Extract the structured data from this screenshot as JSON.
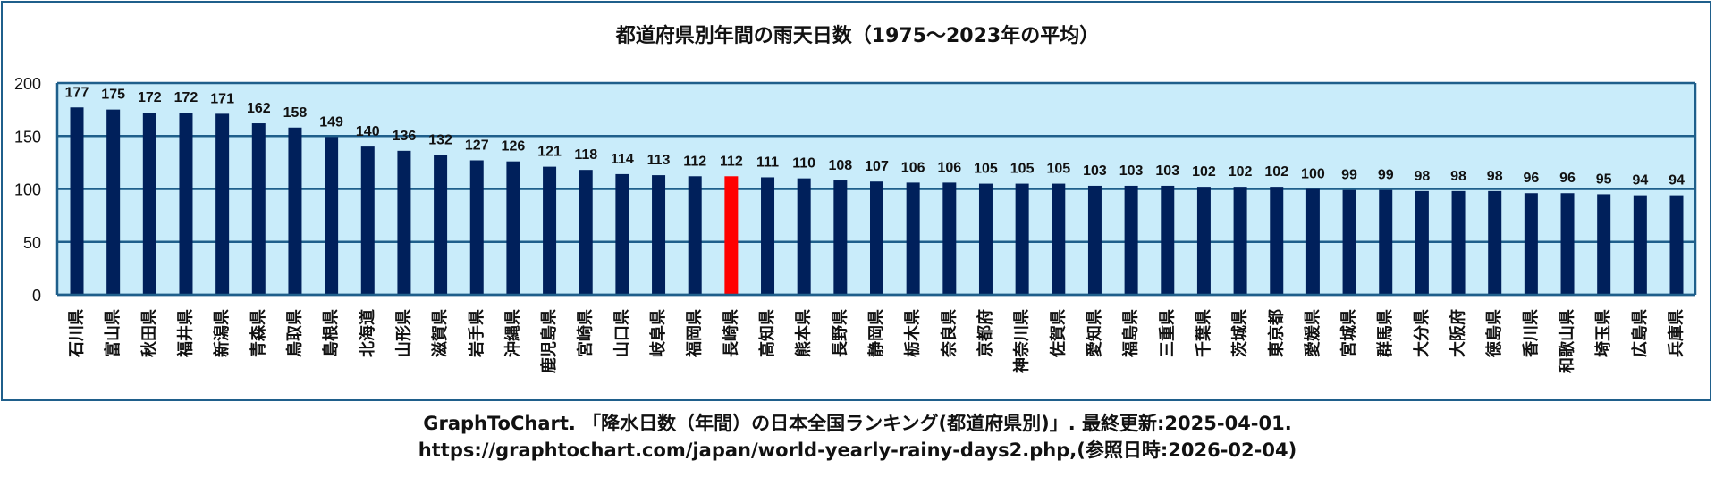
{
  "chart_data": {
    "type": "bar",
    "title": "都道府県別年間の雨天日数（1975～2023年の平均）",
    "xlabel": "",
    "ylabel": "",
    "ylim": [
      0,
      200
    ],
    "yticks": [
      0,
      50,
      100,
      150,
      200
    ],
    "grid": true,
    "categories": [
      "石川県",
      "富山県",
      "秋田県",
      "福井県",
      "新潟県",
      "青森県",
      "鳥取県",
      "島根県",
      "北海道",
      "山形県",
      "滋賀県",
      "岩手県",
      "沖縄県",
      "鹿児島県",
      "宮崎県",
      "山口県",
      "岐阜県",
      "福岡県",
      "長崎県",
      "高知県",
      "熊本県",
      "長野県",
      "静岡県",
      "栃木県",
      "奈良県",
      "京都府",
      "神奈川県",
      "佐賀県",
      "愛知県",
      "福島県",
      "三重県",
      "千葉県",
      "茨城県",
      "東京都",
      "愛媛県",
      "宮城県",
      "群馬県",
      "大分県",
      "大阪府",
      "徳島県",
      "香川県",
      "和歌山県",
      "埼玉県",
      "広島県",
      "兵庫県"
    ],
    "values": [
      177,
      175,
      172,
      172,
      171,
      162,
      158,
      149,
      140,
      136,
      132,
      127,
      126,
      121,
      118,
      114,
      113,
      112,
      112,
      111,
      110,
      108,
      107,
      106,
      106,
      105,
      105,
      105,
      103,
      103,
      103,
      102,
      102,
      102,
      100,
      99,
      99,
      98,
      98,
      98,
      96,
      96,
      95,
      94,
      94
    ],
    "highlight": "長崎県",
    "colors": {
      "bar": "#00205b",
      "highlight": "#ff0000",
      "plot_bg": "#c9ecfa",
      "grid": "#1f5f8b"
    }
  },
  "footer": {
    "line1": "GraphToChart. 「降水日数（年間）の日本全国ランキング(都道府県別)」. 最終更新:2025-04-01.",
    "line2": "https://graphtochart.com/japan/world-yearly-rainy-days2.php,(参照日時:2026-02-04)"
  }
}
